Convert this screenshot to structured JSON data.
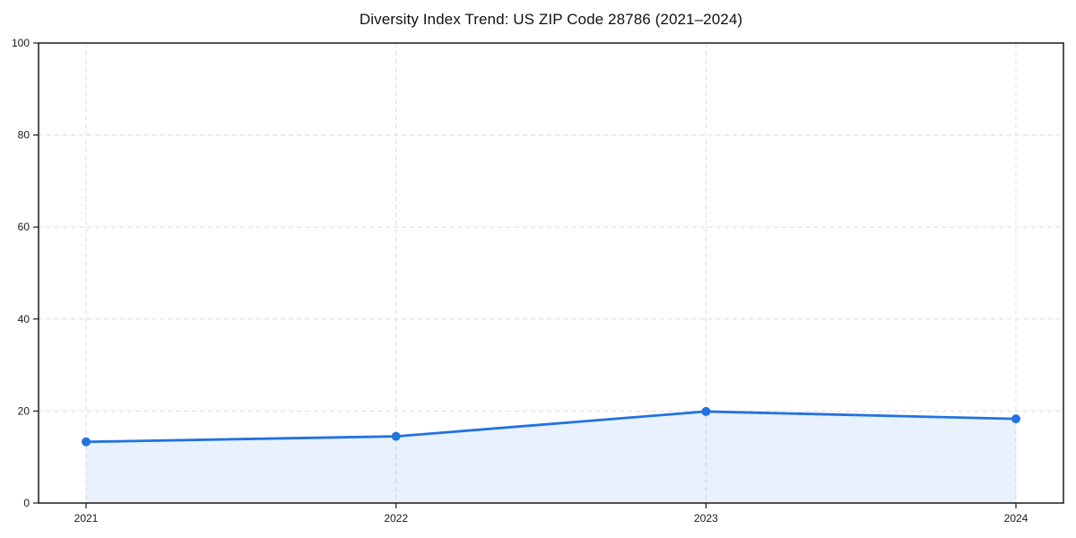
{
  "figure": {
    "title": "Diversity Index Trend: US ZIP Code 28786 (2021–2024)",
    "background": "#ffffff"
  },
  "chart_data": {
    "type": "area",
    "title": "Diversity Index Trend: US ZIP Code 28786 (2021–2024)",
    "categories": [
      "2021",
      "2022",
      "2023",
      "2024"
    ],
    "series": [
      {
        "name": "Diversity Index",
        "values": [
          13.3,
          14.5,
          19.9,
          18.3
        ]
      }
    ],
    "xlabel": "",
    "ylabel": "",
    "ylim": [
      0,
      100
    ],
    "yticks": [
      0,
      20,
      40,
      60,
      80,
      100
    ],
    "xticks": [
      "2021",
      "2022",
      "2023",
      "2024"
    ],
    "grid": true,
    "grid_style": "dashed",
    "legend_position": "none",
    "line_color": "#2272e0",
    "fill_color": "rgba(34, 114, 224, 0.10)",
    "marker": "circle",
    "marker_color": "#2272e0",
    "spine_color": "#1a1a1a",
    "grid_color": "#dddddd"
  }
}
